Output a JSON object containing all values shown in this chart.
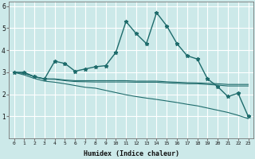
{
  "title": "",
  "xlabel": "Humidex (Indice chaleur)",
  "xlim": [
    -0.5,
    23.5
  ],
  "ylim": [
    0,
    6.2
  ],
  "yticks": [
    1,
    2,
    3,
    4,
    5,
    6
  ],
  "xticks": [
    0,
    1,
    2,
    3,
    4,
    5,
    6,
    7,
    8,
    9,
    10,
    11,
    12,
    13,
    14,
    15,
    16,
    17,
    18,
    19,
    20,
    21,
    22,
    23
  ],
  "bg_color": "#cce9e9",
  "grid_color": "#ffffff",
  "line_color": "#1e6b6b",
  "lines": [
    {
      "has_markers": true,
      "x": [
        0,
        1,
        2,
        3,
        4,
        5,
        6,
        7,
        8,
        9,
        10,
        11,
        12,
        13,
        14,
        15,
        16,
        17,
        18,
        19,
        20,
        21,
        22,
        23
      ],
      "y": [
        3.0,
        3.0,
        2.8,
        2.7,
        3.5,
        3.4,
        3.05,
        3.15,
        3.25,
        3.3,
        3.9,
        5.3,
        4.75,
        4.3,
        5.7,
        5.1,
        4.3,
        3.75,
        3.6,
        2.7,
        2.35,
        1.9,
        2.05,
        1.0
      ]
    },
    {
      "has_markers": false,
      "x": [
        0,
        1,
        2,
        3,
        4,
        5,
        6,
        7,
        8,
        9,
        10,
        11,
        12,
        13,
        14,
        15,
        16,
        17,
        18,
        19,
        20,
        21,
        22,
        23
      ],
      "y": [
        3.0,
        2.95,
        2.8,
        2.7,
        2.7,
        2.65,
        2.62,
        2.62,
        2.62,
        2.62,
        2.62,
        2.62,
        2.6,
        2.6,
        2.6,
        2.57,
        2.55,
        2.53,
        2.52,
        2.5,
        2.48,
        2.45,
        2.45,
        2.45
      ]
    },
    {
      "has_markers": false,
      "x": [
        0,
        1,
        2,
        3,
        4,
        5,
        6,
        7,
        8,
        9,
        10,
        11,
        12,
        13,
        14,
        15,
        16,
        17,
        18,
        19,
        20,
        21,
        22,
        23
      ],
      "y": [
        3.0,
        2.95,
        2.8,
        2.7,
        2.68,
        2.62,
        2.58,
        2.57,
        2.56,
        2.56,
        2.56,
        2.56,
        2.55,
        2.55,
        2.55,
        2.52,
        2.5,
        2.48,
        2.48,
        2.45,
        2.42,
        2.38,
        2.38,
        2.38
      ]
    },
    {
      "has_markers": false,
      "x": [
        0,
        1,
        2,
        3,
        4,
        5,
        6,
        7,
        8,
        9,
        10,
        11,
        12,
        13,
        14,
        15,
        16,
        17,
        18,
        19,
        20,
        21,
        22,
        23
      ],
      "y": [
        3.0,
        2.88,
        2.72,
        2.6,
        2.55,
        2.48,
        2.4,
        2.32,
        2.28,
        2.18,
        2.08,
        1.98,
        1.9,
        1.83,
        1.77,
        1.7,
        1.63,
        1.55,
        1.48,
        1.38,
        1.28,
        1.18,
        1.05,
        0.9
      ]
    }
  ]
}
